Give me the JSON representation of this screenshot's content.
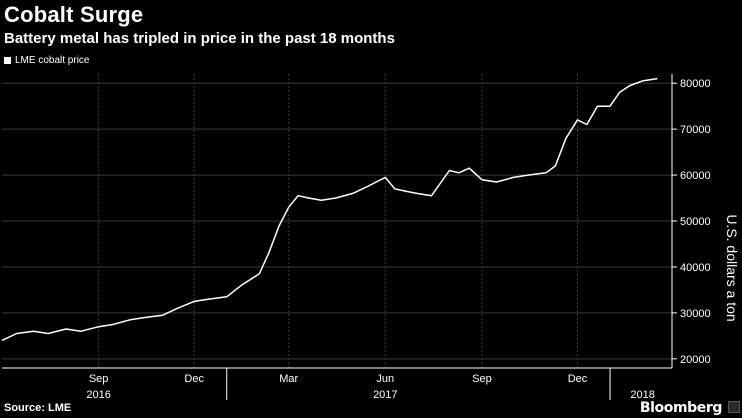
{
  "header": {
    "title": "Cobalt Surge",
    "subtitle": "Battery metal has tripled in price in the past 18 months"
  },
  "legend": {
    "label": "LME cobalt price"
  },
  "footer": {
    "source": "Source: LME",
    "brand": "Bloomberg"
  },
  "colors": {
    "background": "#000000",
    "line": "#ffffff",
    "grid": "#3a3a3a"
  },
  "chart_data": {
    "type": "line",
    "title": "Cobalt Surge",
    "subtitle": "Battery metal has tripled in price in the past 18 months",
    "ylabel": "U.S. dollars a ton",
    "xlabel": "",
    "ylim": [
      18000,
      82000
    ],
    "y_ticks": [
      20000,
      30000,
      40000,
      50000,
      60000,
      70000,
      80000
    ],
    "y_axis_position": "right",
    "grid": true,
    "legend_position": "top-left",
    "x_month_ticks": [
      {
        "date": "2016-09-01",
        "label": "Sep"
      },
      {
        "date": "2016-12-01",
        "label": "Dec"
      },
      {
        "date": "2017-03-01",
        "label": "Mar"
      },
      {
        "date": "2017-06-01",
        "label": "Jun"
      },
      {
        "date": "2017-09-01",
        "label": "Sep"
      },
      {
        "date": "2017-12-01",
        "label": "Dec"
      }
    ],
    "x_year_labels": [
      {
        "date": "2016-09-01",
        "label": "2016"
      },
      {
        "date": "2017-06-01",
        "label": "2017"
      },
      {
        "date": "2018-02-01",
        "label": "2018"
      }
    ],
    "x_year_dividers": [
      "2017-01-01",
      "2018-01-01"
    ],
    "x_range": [
      "2016-06-01",
      "2018-03-01"
    ],
    "series": [
      {
        "name": "LME cobalt price",
        "x": [
          "2016-06-01",
          "2016-06-15",
          "2016-07-01",
          "2016-07-15",
          "2016-08-01",
          "2016-08-15",
          "2016-09-01",
          "2016-09-15",
          "2016-10-01",
          "2016-10-15",
          "2016-11-01",
          "2016-11-15",
          "2016-12-01",
          "2016-12-15",
          "2017-01-01",
          "2017-01-15",
          "2017-02-01",
          "2017-02-10",
          "2017-02-20",
          "2017-03-01",
          "2017-03-10",
          "2017-03-20",
          "2017-04-01",
          "2017-04-15",
          "2017-05-01",
          "2017-05-15",
          "2017-06-01",
          "2017-06-10",
          "2017-06-20",
          "2017-07-01",
          "2017-07-15",
          "2017-08-01",
          "2017-08-10",
          "2017-08-20",
          "2017-09-01",
          "2017-09-15",
          "2017-10-01",
          "2017-10-15",
          "2017-11-01",
          "2017-11-10",
          "2017-11-20",
          "2017-12-01",
          "2017-12-10",
          "2017-12-20",
          "2018-01-01",
          "2018-01-10",
          "2018-01-20",
          "2018-02-01",
          "2018-02-15"
        ],
        "values": [
          24000,
          25500,
          26000,
          25500,
          26500,
          26000,
          27000,
          27500,
          28500,
          29000,
          29500,
          31000,
          32500,
          33000,
          33500,
          36000,
          38500,
          43000,
          49000,
          53000,
          55500,
          55000,
          54500,
          55000,
          56000,
          57500,
          59500,
          57000,
          56500,
          56000,
          55500,
          61000,
          60500,
          61500,
          59000,
          58500,
          59500,
          60000,
          60500,
          62000,
          68000,
          72000,
          71000,
          75000,
          75000,
          78000,
          79500,
          80500,
          81000
        ]
      }
    ]
  }
}
